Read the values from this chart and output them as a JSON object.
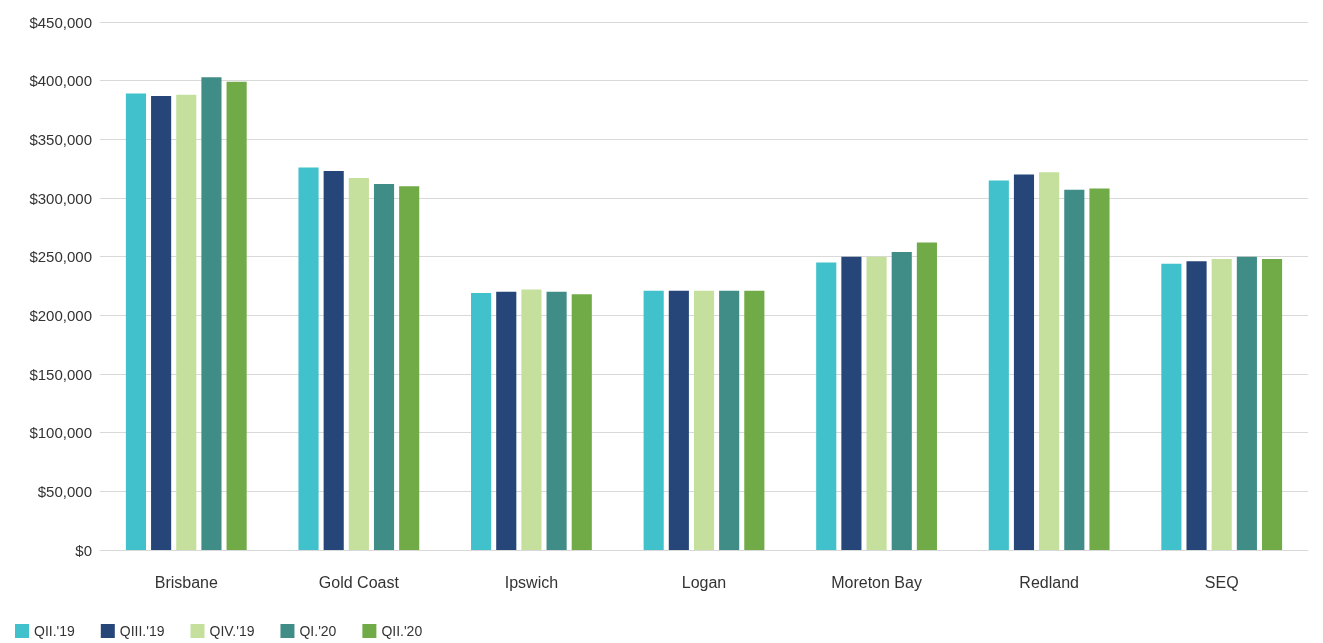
{
  "chart_data": {
    "type": "bar",
    "categories": [
      "Brisbane",
      "Gold Coast",
      "Ipswich",
      "Logan",
      "Moreton Bay",
      "Redland",
      "SEQ"
    ],
    "series": [
      {
        "name": "QII.'19",
        "color": "#40c1cb",
        "values": [
          389000,
          326000,
          219000,
          221000,
          245000,
          315000,
          244000
        ]
      },
      {
        "name": "QIII.'19",
        "color": "#26467a",
        "values": [
          387000,
          323000,
          220000,
          221000,
          250000,
          320000,
          246000
        ]
      },
      {
        "name": "QIV.'19",
        "color": "#c5e09c",
        "values": [
          388000,
          317000,
          222000,
          221000,
          250000,
          322000,
          248000
        ]
      },
      {
        "name": "QI.'20",
        "color": "#3f8d86",
        "values": [
          403000,
          312000,
          220000,
          221000,
          254000,
          307000,
          250000
        ]
      },
      {
        "name": "QII.'20",
        "color": "#71ab48",
        "values": [
          399000,
          310000,
          218000,
          221000,
          262000,
          308000,
          248000
        ]
      }
    ],
    "ylim": [
      0,
      450000
    ],
    "yticks": [
      {
        "value": 0,
        "label": "$0"
      },
      {
        "value": 50000,
        "label": "$50,000"
      },
      {
        "value": 100000,
        "label": "$100,000"
      },
      {
        "value": 150000,
        "label": "$150,000"
      },
      {
        "value": 200000,
        "label": "$200,000"
      },
      {
        "value": 250000,
        "label": "$250,000"
      },
      {
        "value": 300000,
        "label": "$300,000"
      },
      {
        "value": 350000,
        "label": "$350,000"
      },
      {
        "value": 400000,
        "label": "$400,000"
      },
      {
        "value": 450000,
        "label": "$450,000"
      }
    ],
    "grid": "y",
    "legend": "bottom left"
  }
}
